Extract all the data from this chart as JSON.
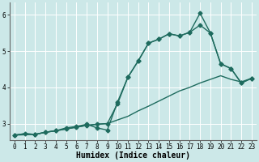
{
  "background_color": "#cce8e8",
  "grid_color": "#b0d8d8",
  "line_color": "#1e6b5e",
  "xlabel": "Humidex (Indice chaleur)",
  "xlim": [
    -0.5,
    23.5
  ],
  "ylim": [
    2.55,
    6.35
  ],
  "yticks": [
    3,
    4,
    5,
    6
  ],
  "xticks": [
    0,
    1,
    2,
    3,
    4,
    5,
    6,
    7,
    8,
    9,
    10,
    11,
    12,
    13,
    14,
    15,
    16,
    17,
    18,
    19,
    20,
    21,
    22,
    23
  ],
  "series1_x": [
    0,
    1,
    2,
    3,
    4,
    5,
    6,
    7,
    8,
    9,
    10,
    11,
    12,
    13,
    14,
    15,
    16,
    17,
    18,
    19,
    20,
    21,
    22,
    23
  ],
  "series1_y": [
    2.68,
    2.72,
    2.7,
    2.76,
    2.8,
    2.85,
    2.9,
    2.95,
    2.98,
    3.0,
    3.1,
    3.2,
    3.35,
    3.48,
    3.62,
    3.76,
    3.9,
    4.0,
    4.12,
    4.22,
    4.32,
    4.22,
    4.15,
    4.25
  ],
  "series2_x": [
    0,
    2,
    3,
    4,
    5,
    6,
    7,
    8,
    9,
    10,
    11,
    12,
    13,
    14,
    15,
    16,
    17,
    18,
    19,
    20,
    21,
    22,
    23
  ],
  "series2_y": [
    2.68,
    2.7,
    2.76,
    2.8,
    2.88,
    2.92,
    2.98,
    2.88,
    2.82,
    3.6,
    4.28,
    4.73,
    5.22,
    5.33,
    5.48,
    5.42,
    5.52,
    6.05,
    5.5,
    4.65,
    4.52,
    4.12,
    4.25
  ],
  "series3_x": [
    0,
    1,
    2,
    3,
    4,
    5,
    6,
    7,
    8,
    9,
    10,
    11,
    12,
    13,
    14,
    15,
    16,
    17,
    18,
    19,
    20,
    21,
    22,
    23
  ],
  "series3_y": [
    2.68,
    2.72,
    2.7,
    2.76,
    2.8,
    2.85,
    2.9,
    2.95,
    2.98,
    3.0,
    3.55,
    4.28,
    4.73,
    5.22,
    5.33,
    5.48,
    5.42,
    5.52,
    5.72,
    5.5,
    4.65,
    4.52,
    4.12,
    4.25
  ],
  "marker": "D",
  "markersize": 2.5,
  "linewidth": 1.0,
  "xlabel_fontsize": 7,
  "tick_fontsize": 5.5
}
